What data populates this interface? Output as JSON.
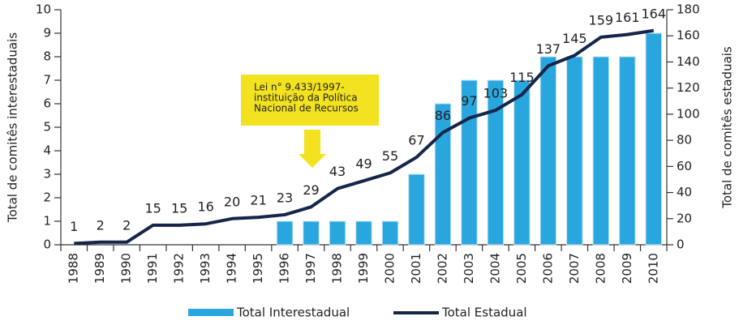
{
  "chart_data": {
    "type": "bar_line",
    "y_label": "Total de comitês interestaduais",
    "y2_label": "Total de comitês estaduais",
    "annotation": {
      "lines": [
        "Lei n° 9.433/1997-",
        "instituição da Política",
        "Nacional de Recursos"
      ],
      "color": "#f3e21f"
    },
    "categories": [
      "1988",
      "1989",
      "1990",
      "1991",
      "1992",
      "1993",
      "1994",
      "1995",
      "1996",
      "1997",
      "1998",
      "1999",
      "2000",
      "2001",
      "2002",
      "2003",
      "2004",
      "2005",
      "2006",
      "2007",
      "2008",
      "2009",
      "2010"
    ],
    "series": [
      {
        "name": "Total Interestadual",
        "type": "bar",
        "color": "#2aa6df",
        "values": [
          0,
          0,
          0,
          0,
          0,
          0,
          0,
          0,
          1,
          1,
          1,
          1,
          1,
          3,
          6,
          7,
          7,
          7,
          8,
          8,
          8,
          8,
          9
        ]
      },
      {
        "name": "Total Estadual",
        "type": "line",
        "axis": "y2",
        "color": "#15264a",
        "values": [
          1,
          2,
          2,
          15,
          15,
          16,
          20,
          21,
          23,
          29,
          43,
          49,
          55,
          67,
          86,
          97,
          103,
          115,
          137,
          145,
          159,
          161,
          164
        ]
      }
    ],
    "ylim": [
      0,
      10
    ],
    "yticks": [
      0,
      1,
      2,
      3,
      4,
      5,
      6,
      7,
      8,
      9,
      10
    ],
    "y2lim": [
      0,
      180
    ],
    "y2ticks": [
      0,
      20,
      40,
      60,
      80,
      100,
      120,
      140,
      160,
      180
    ],
    "grid": false,
    "legend": "bottom"
  }
}
